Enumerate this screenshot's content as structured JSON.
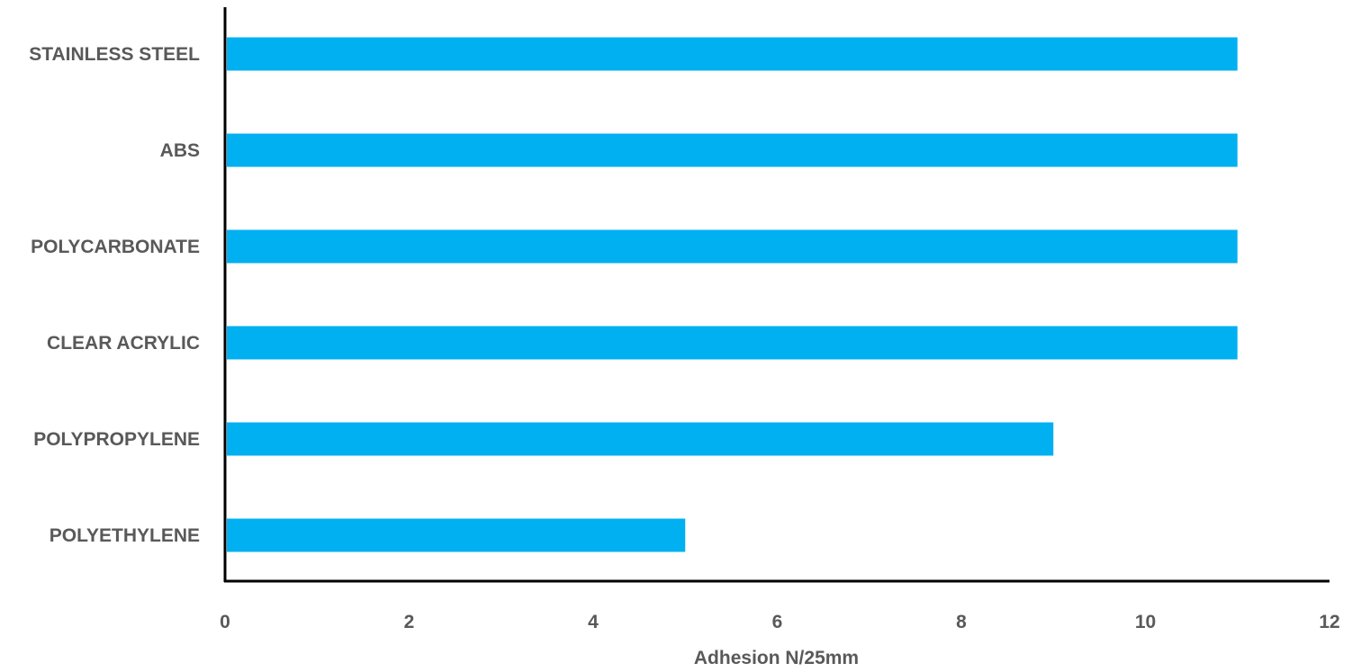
{
  "chart_data": {
    "type": "bar",
    "orientation": "horizontal",
    "categories": [
      "STAINLESS STEEL",
      "ABS",
      "POLYCARBONATE",
      "CLEAR ACRYLIC",
      "POLYPROPYLENE",
      "POLYETHYLENE"
    ],
    "values": [
      11,
      11,
      11,
      11,
      9,
      5
    ],
    "title": "",
    "xlabel": "Adhesion N/25mm",
    "ylabel": "",
    "xlim": [
      0,
      12
    ],
    "xticks": [
      0,
      2,
      4,
      6,
      8,
      10,
      12
    ],
    "grid": false,
    "legend": "none",
    "bar_color": "#00B0F0",
    "axis_color": "#000000",
    "text_color": "#595959"
  }
}
